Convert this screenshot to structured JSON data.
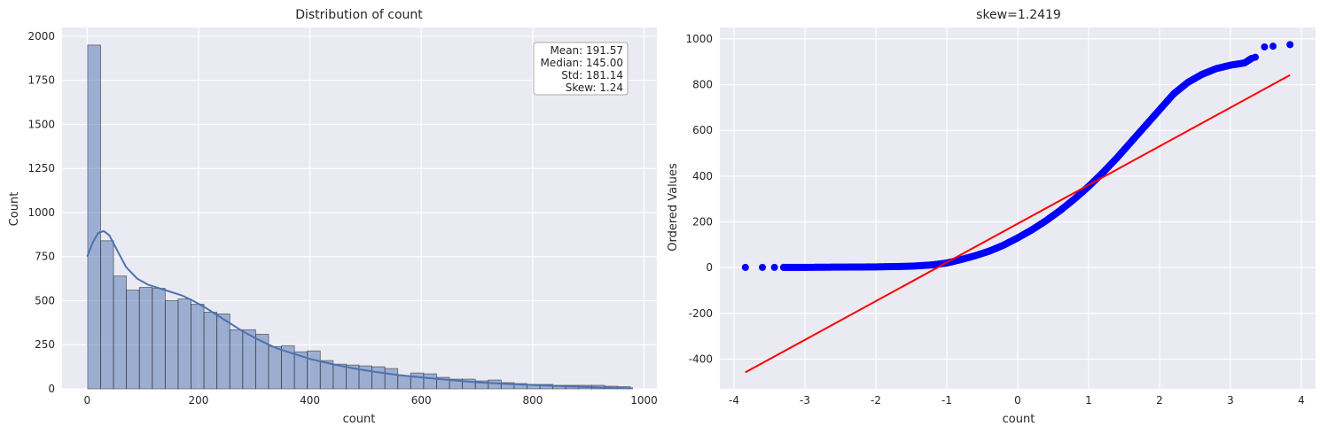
{
  "chart_data": [
    {
      "type": "bar",
      "title": "Distribution of count",
      "xlabel": "count",
      "ylabel": "Count",
      "xlim": [
        -45,
        1023
      ],
      "ylim": [
        0,
        2050
      ],
      "xticks": [
        0,
        200,
        400,
        600,
        800,
        1000
      ],
      "yticks": [
        0,
        250,
        500,
        750,
        1000,
        1250,
        1500,
        1750,
        2000
      ],
      "grid": true,
      "bin_width": 23.2,
      "bin_start": 1,
      "bin_counts": [
        1950,
        840,
        640,
        560,
        575,
        570,
        500,
        510,
        480,
        435,
        425,
        335,
        335,
        310,
        240,
        245,
        210,
        215,
        160,
        140,
        135,
        130,
        125,
        115,
        75,
        90,
        85,
        65,
        55,
        55,
        45,
        50,
        35,
        30,
        25,
        25,
        20,
        20,
        20,
        20,
        15,
        12
      ],
      "bar_color": "#4c72b0",
      "kde": {
        "x": [
          0,
          10,
          20,
          30,
          40,
          55,
          70,
          90,
          110,
          130,
          150,
          170,
          190,
          210,
          230,
          250,
          280,
          310,
          340,
          370,
          400,
          440,
          480,
          520,
          560,
          600,
          650,
          700,
          750,
          800,
          850,
          900,
          950,
          980
        ],
        "y": [
          750,
          830,
          885,
          895,
          870,
          780,
          690,
          625,
          590,
          570,
          550,
          530,
          500,
          465,
          425,
          385,
          325,
          275,
          230,
          200,
          170,
          140,
          115,
          95,
          78,
          65,
          50,
          37,
          28,
          22,
          15,
          10,
          5,
          3
        ]
      },
      "stats_box": {
        "lines": [
          "Mean: 191.57",
          "Median: 145.00",
          "Std: 181.14",
          "Skew: 1.24"
        ],
        "position": "top-right"
      }
    },
    {
      "type": "scatter",
      "title": "skew=1.2419",
      "xlabel": "count",
      "ylabel": "Ordered Values",
      "xlim": [
        -4.2,
        4.2
      ],
      "ylim": [
        -530,
        1050
      ],
      "xticks": [
        -4,
        -3,
        -2,
        -1,
        0,
        1,
        2,
        3,
        4
      ],
      "yticks": [
        -400,
        -200,
        0,
        200,
        400,
        600,
        800,
        1000
      ],
      "grid": true,
      "point_color": "#0000ff",
      "line_color": "#ff0000",
      "fit_line": {
        "x": [
          -3.84,
          3.84
        ],
        "y": [
          -458,
          842
        ]
      },
      "quantile_curve": {
        "x": [
          -3.84,
          -3.6,
          -3.4,
          -3.2,
          -3.0,
          -2.5,
          -2.0,
          -1.5,
          -1.2,
          -1.0,
          -0.8,
          -0.6,
          -0.4,
          -0.2,
          0.0,
          0.2,
          0.4,
          0.6,
          0.8,
          1.0,
          1.2,
          1.4,
          1.6,
          1.8,
          2.0,
          2.2,
          2.4,
          2.6,
          2.8,
          3.0,
          3.2,
          3.4
        ],
        "y": [
          1,
          1,
          1,
          1,
          1,
          2,
          3,
          6,
          12,
          20,
          35,
          52,
          72,
          98,
          130,
          165,
          205,
          250,
          300,
          355,
          415,
          480,
          550,
          620,
          690,
          760,
          810,
          845,
          870,
          885,
          895,
          935
        ]
      },
      "outlier_points": {
        "x": [
          -3.84,
          -3.6,
          -3.43,
          -3.3,
          3.35,
          3.48,
          3.6,
          3.84
        ],
        "y": [
          1,
          1,
          1,
          1,
          920,
          965,
          968,
          975
        ]
      }
    }
  ]
}
